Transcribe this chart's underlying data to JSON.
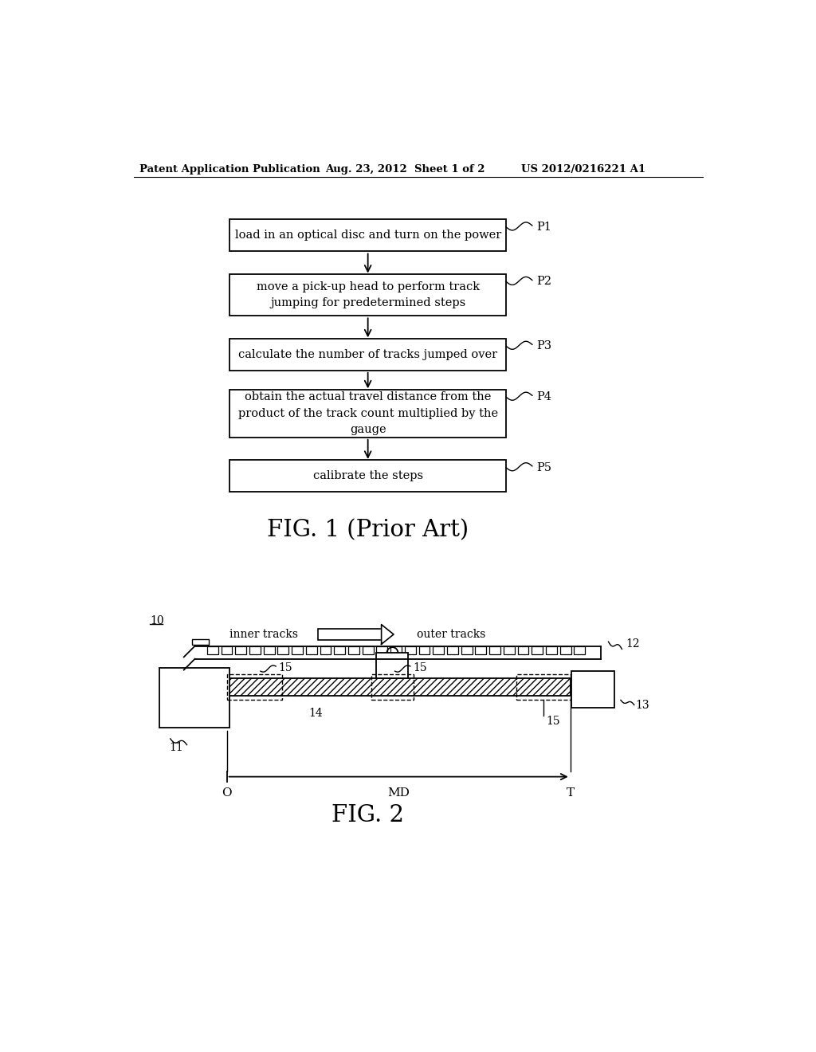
{
  "header_left": "Patent Application Publication",
  "header_center": "Aug. 23, 2012  Sheet 1 of 2",
  "header_right": "US 2012/0216221 A1",
  "fig1_title": "FIG. 1 (Prior Art)",
  "fig2_title": "FIG. 2",
  "flowchart_boxes": [
    {
      "label": "load in an optical disc and turn on the power",
      "tag": "P1",
      "lines": 1
    },
    {
      "label": "move a pick-up head to perform track\njumping for predetermined steps",
      "tag": "P2",
      "lines": 2
    },
    {
      "label": "calculate the number of tracks jumped over",
      "tag": "P3",
      "lines": 1
    },
    {
      "label": "obtain the actual travel distance from the\nproduct of the track count multiplied by the\ngauge",
      "tag": "P4",
      "lines": 3
    },
    {
      "label": "calibrate the steps",
      "tag": "P5",
      "lines": 1
    }
  ],
  "label_10": "10",
  "label_11": "11",
  "label_12": "12",
  "label_13": "13",
  "label_14": "14",
  "label_15a": "15",
  "label_15b": "15",
  "label_15c": "15",
  "inner_tracks": "inner tracks",
  "outer_tracks": "outer tracks",
  "label_O": "O",
  "label_MD": "MD",
  "label_T": "T",
  "bg_color": "#ffffff",
  "box_color": "#000000",
  "text_color": "#000000",
  "arrow_color": "#000000"
}
